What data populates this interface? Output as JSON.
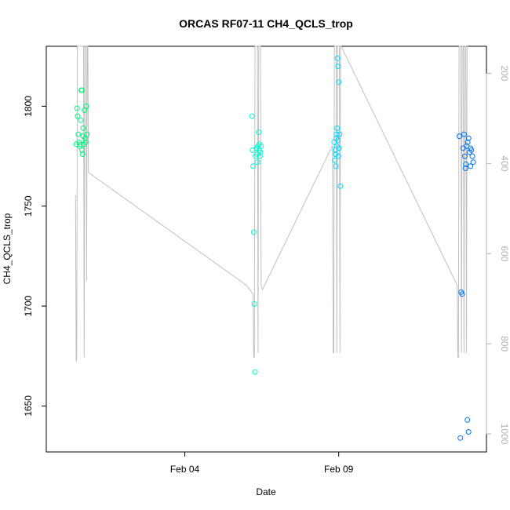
{
  "chart_data": {
    "type": "scatter",
    "title": "ORCAS RF07-11 CH4_QCLS_trop",
    "xlabel": "Date",
    "ylabel": "CH4_QCLS_trop",
    "x_ticks": [
      {
        "value": 4.0,
        "label": "Feb 04"
      },
      {
        "value": 9.0,
        "label": "Feb 09"
      }
    ],
    "xlim": [
      -0.5,
      13.8
    ],
    "ylim": [
      1627,
      1830
    ],
    "y_ticks": [
      1650,
      1700,
      1750,
      1800
    ],
    "y2lim": [
      1040,
      140
    ],
    "y2_ticks": [
      200,
      400,
      600,
      800,
      1000
    ],
    "point_colors": [
      "#00f57a",
      "#00ffd0",
      "#00d8ff",
      "#0070f0"
    ],
    "line_color": "#c0c0c0",
    "series": [
      {
        "flight": 1,
        "color": "#00f57a",
        "points": [
          [
            0.48,
            1781
          ],
          [
            0.5,
            1799
          ],
          [
            0.52,
            1795
          ],
          [
            0.54,
            1786
          ],
          [
            0.56,
            1782
          ],
          [
            0.58,
            1780
          ],
          [
            0.6,
            1781
          ],
          [
            0.62,
            1793
          ],
          [
            0.64,
            1808
          ],
          [
            0.66,
            1808
          ],
          [
            0.68,
            1776
          ],
          [
            0.7,
            1789
          ],
          [
            0.72,
            1781
          ],
          [
            0.74,
            1798
          ],
          [
            0.76,
            1784
          ],
          [
            0.78,
            1782
          ],
          [
            0.8,
            1800
          ],
          [
            0.82,
            1786
          ],
          [
            0.66,
            1778
          ],
          [
            0.7,
            1785
          ]
        ]
      },
      {
        "flight": 2,
        "color": "#00ffd0",
        "points": [
          [
            6.18,
            1795
          ],
          [
            6.2,
            1778
          ],
          [
            6.22,
            1770
          ],
          [
            6.24,
            1737
          ],
          [
            6.26,
            1701
          ],
          [
            6.28,
            1667
          ],
          [
            6.3,
            1775
          ],
          [
            6.32,
            1779
          ],
          [
            6.34,
            1779
          ],
          [
            6.36,
            1772
          ],
          [
            6.38,
            1780
          ],
          [
            6.4,
            1787
          ],
          [
            6.42,
            1781
          ],
          [
            6.44,
            1775
          ],
          [
            6.46,
            1777
          ],
          [
            6.48,
            1780
          ],
          [
            6.36,
            1776
          ],
          [
            6.42,
            1778
          ]
        ]
      },
      {
        "flight": 3,
        "color": "#00d8ff",
        "points": [
          [
            8.85,
            1782
          ],
          [
            8.87,
            1773
          ],
          [
            8.89,
            1778
          ],
          [
            8.91,
            1770
          ],
          [
            8.93,
            1786
          ],
          [
            8.95,
            1789
          ],
          [
            8.97,
            1783
          ],
          [
            8.99,
            1775
          ],
          [
            9.01,
            1779
          ],
          [
            9.03,
            1786
          ],
          [
            9.05,
            1760
          ],
          [
            8.96,
            1824
          ],
          [
            8.98,
            1820
          ],
          [
            9.0,
            1812
          ],
          [
            8.9,
            1776
          ],
          [
            8.94,
            1780
          ],
          [
            8.92,
            1784
          ]
        ]
      },
      {
        "flight": 4,
        "color": "#0070f0",
        "points": [
          [
            12.92,
            1785
          ],
          [
            12.95,
            1634
          ],
          [
            12.98,
            1707
          ],
          [
            13.01,
            1706
          ],
          [
            13.04,
            1779
          ],
          [
            13.07,
            1786
          ],
          [
            13.1,
            1775
          ],
          [
            13.13,
            1771
          ],
          [
            13.16,
            1780
          ],
          [
            13.19,
            1782
          ],
          [
            13.22,
            1784
          ],
          [
            13.25,
            1777
          ],
          [
            13.28,
            1779
          ],
          [
            13.31,
            1778
          ],
          [
            13.34,
            1775
          ],
          [
            13.37,
            1772
          ],
          [
            13.18,
            1643
          ],
          [
            13.22,
            1637
          ],
          [
            13.12,
            1769
          ],
          [
            13.28,
            1770
          ]
        ]
      }
    ],
    "pressure_track": [
      [
        0.45,
        470
      ],
      [
        0.47,
        840
      ],
      [
        0.49,
        832
      ],
      [
        0.51,
        140
      ],
      [
        0.53,
        140
      ],
      [
        0.55,
        140
      ],
      [
        0.57,
        140
      ],
      [
        0.59,
        140
      ],
      [
        0.61,
        140
      ],
      [
        0.63,
        140
      ],
      [
        0.65,
        140
      ],
      [
        0.67,
        140
      ],
      [
        0.69,
        140
      ],
      [
        0.71,
        140
      ],
      [
        0.73,
        830
      ],
      [
        0.75,
        140
      ],
      [
        0.77,
        140
      ],
      [
        0.79,
        140
      ],
      [
        0.81,
        660
      ],
      [
        0.83,
        140
      ],
      [
        0.85,
        140
      ],
      [
        0.87,
        420
      ],
      [
        6.0,
        670
      ],
      [
        6.22,
        690
      ],
      [
        6.24,
        830
      ],
      [
        6.26,
        830
      ],
      [
        6.28,
        140
      ],
      [
        6.3,
        140
      ],
      [
        6.32,
        140
      ],
      [
        6.34,
        140
      ],
      [
        6.36,
        140
      ],
      [
        6.38,
        820
      ],
      [
        6.4,
        140
      ],
      [
        6.42,
        140
      ],
      [
        6.44,
        140
      ],
      [
        6.46,
        140
      ],
      [
        6.48,
        670
      ],
      [
        6.52,
        680
      ],
      [
        8.8,
        360
      ],
      [
        8.82,
        820
      ],
      [
        8.84,
        820
      ],
      [
        8.86,
        140
      ],
      [
        8.88,
        140
      ],
      [
        8.9,
        140
      ],
      [
        8.92,
        140
      ],
      [
        8.94,
        820
      ],
      [
        8.96,
        140
      ],
      [
        8.98,
        140
      ],
      [
        9.0,
        140
      ],
      [
        9.02,
        140
      ],
      [
        9.04,
        820
      ],
      [
        9.06,
        140
      ],
      [
        9.08,
        140
      ],
      [
        12.85,
        670
      ],
      [
        12.87,
        830
      ],
      [
        12.89,
        830
      ],
      [
        12.91,
        140
      ],
      [
        12.93,
        140
      ],
      [
        12.95,
        140
      ],
      [
        12.97,
        140
      ],
      [
        12.99,
        820
      ],
      [
        13.01,
        140
      ],
      [
        13.03,
        140
      ],
      [
        13.05,
        140
      ],
      [
        13.07,
        820
      ],
      [
        13.09,
        140
      ],
      [
        13.11,
        140
      ],
      [
        13.13,
        140
      ],
      [
        13.15,
        820
      ],
      [
        13.17,
        140
      ],
      [
        13.19,
        140
      ]
    ]
  }
}
